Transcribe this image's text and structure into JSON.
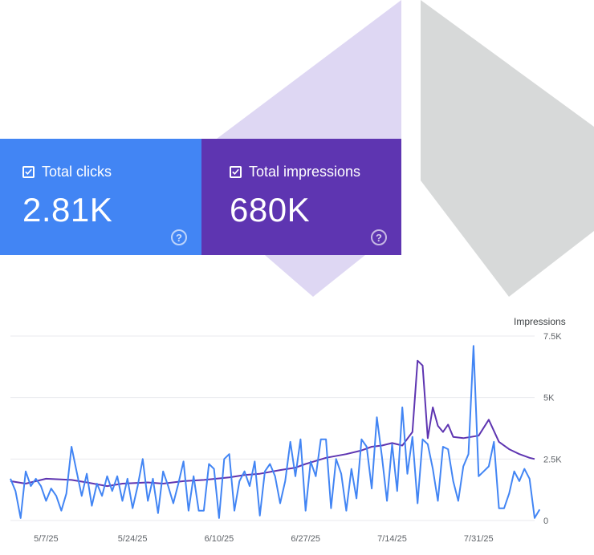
{
  "cards": {
    "clicks": {
      "label": "Total clicks",
      "value": "2.81K",
      "color": "#4285f4",
      "checked": true,
      "help_icon": "help-circle-icon"
    },
    "impressions": {
      "label": "Total impressions",
      "value": "680K",
      "color": "#5e35b1",
      "checked": true,
      "help_icon": "help-circle-icon"
    }
  },
  "chart_data": {
    "type": "line",
    "x_axis_type": "date",
    "x_range": [
      "2025-04-30",
      "2025-08-11"
    ],
    "xticks": [
      {
        "date": "2025-05-07",
        "label": "5/7/25"
      },
      {
        "date": "2025-05-24",
        "label": "5/24/25"
      },
      {
        "date": "2025-06-10",
        "label": "6/10/25"
      },
      {
        "date": "2025-06-27",
        "label": "6/27/25"
      },
      {
        "date": "2025-07-14",
        "label": "7/14/25"
      },
      {
        "date": "2025-07-31",
        "label": "7/31/25"
      }
    ],
    "right_axis": {
      "title": "Impressions",
      "ticks": [
        "7.5K",
        "5K",
        "2.5K",
        "0"
      ],
      "range": [
        0,
        7500
      ],
      "tick_values": [
        0,
        2500,
        5000,
        7500
      ]
    },
    "grid": true,
    "series": [
      {
        "color": "#5e35b1",
        "axis": "right",
        "points": [
          [
            "2025-04-30",
            1600
          ],
          [
            "2025-05-03",
            1500
          ],
          [
            "2025-05-07",
            1700
          ],
          [
            "2025-05-12",
            1650
          ],
          [
            "2025-05-15",
            1550
          ],
          [
            "2025-05-19",
            1400
          ],
          [
            "2025-05-22",
            1500
          ],
          [
            "2025-05-27",
            1550
          ],
          [
            "2025-05-30",
            1500
          ],
          [
            "2025-06-03",
            1600
          ],
          [
            "2025-06-07",
            1650
          ],
          [
            "2025-06-12",
            1750
          ],
          [
            "2025-06-15",
            1850
          ],
          [
            "2025-06-18",
            1900
          ],
          [
            "2025-06-22",
            2050
          ],
          [
            "2025-06-25",
            2150
          ],
          [
            "2025-06-27",
            2300
          ],
          [
            "2025-07-01",
            2550
          ],
          [
            "2025-07-05",
            2700
          ],
          [
            "2025-07-08",
            2850
          ],
          [
            "2025-07-10",
            3000
          ],
          [
            "2025-07-12",
            3050
          ],
          [
            "2025-07-14",
            3150
          ],
          [
            "2025-07-16",
            3050
          ],
          [
            "2025-07-18",
            3600
          ],
          [
            "2025-07-19",
            6500
          ],
          [
            "2025-07-20",
            6300
          ],
          [
            "2025-07-21",
            3350
          ],
          [
            "2025-07-22",
            4600
          ],
          [
            "2025-07-23",
            3850
          ],
          [
            "2025-07-24",
            3600
          ],
          [
            "2025-07-25",
            3900
          ],
          [
            "2025-07-26",
            3400
          ],
          [
            "2025-07-28",
            3350
          ],
          [
            "2025-07-31",
            3450
          ],
          [
            "2025-08-02",
            4100
          ],
          [
            "2025-08-04",
            3200
          ],
          [
            "2025-08-06",
            2900
          ],
          [
            "2025-08-08",
            2700
          ],
          [
            "2025-08-10",
            2550
          ],
          [
            "2025-08-11",
            2500
          ]
        ]
      },
      {
        "color": "#4285f4",
        "axis": "left",
        "points": [
          [
            "2025-04-30",
            1700
          ],
          [
            "2025-05-01",
            1200
          ],
          [
            "2025-05-02",
            100
          ],
          [
            "2025-05-03",
            2000
          ],
          [
            "2025-05-04",
            1400
          ],
          [
            "2025-05-05",
            1700
          ],
          [
            "2025-05-06",
            1400
          ],
          [
            "2025-05-07",
            800
          ],
          [
            "2025-05-08",
            1300
          ],
          [
            "2025-05-09",
            1000
          ],
          [
            "2025-05-10",
            400
          ],
          [
            "2025-05-11",
            1100
          ],
          [
            "2025-05-12",
            3000
          ],
          [
            "2025-05-13",
            2000
          ],
          [
            "2025-05-14",
            1000
          ],
          [
            "2025-05-15",
            1900
          ],
          [
            "2025-05-16",
            600
          ],
          [
            "2025-05-17",
            1500
          ],
          [
            "2025-05-18",
            1000
          ],
          [
            "2025-05-19",
            1800
          ],
          [
            "2025-05-20",
            1200
          ],
          [
            "2025-05-21",
            1800
          ],
          [
            "2025-05-22",
            800
          ],
          [
            "2025-05-23",
            1700
          ],
          [
            "2025-05-24",
            500
          ],
          [
            "2025-05-25",
            1400
          ],
          [
            "2025-05-26",
            2500
          ],
          [
            "2025-05-27",
            800
          ],
          [
            "2025-05-28",
            1700
          ],
          [
            "2025-05-29",
            300
          ],
          [
            "2025-05-30",
            2000
          ],
          [
            "2025-05-31",
            1400
          ],
          [
            "2025-06-01",
            700
          ],
          [
            "2025-06-02",
            1500
          ],
          [
            "2025-06-03",
            2400
          ],
          [
            "2025-06-04",
            400
          ],
          [
            "2025-06-05",
            1800
          ],
          [
            "2025-06-06",
            400
          ],
          [
            "2025-06-07",
            400
          ],
          [
            "2025-06-08",
            2300
          ],
          [
            "2025-06-09",
            2100
          ],
          [
            "2025-06-10",
            100
          ],
          [
            "2025-06-11",
            2500
          ],
          [
            "2025-06-12",
            2700
          ],
          [
            "2025-06-13",
            400
          ],
          [
            "2025-06-14",
            1600
          ],
          [
            "2025-06-15",
            2000
          ],
          [
            "2025-06-16",
            1400
          ],
          [
            "2025-06-17",
            2400
          ],
          [
            "2025-06-18",
            200
          ],
          [
            "2025-06-19",
            2000
          ],
          [
            "2025-06-20",
            2300
          ],
          [
            "2025-06-21",
            1800
          ],
          [
            "2025-06-22",
            700
          ],
          [
            "2025-06-23",
            1600
          ],
          [
            "2025-06-24",
            3200
          ],
          [
            "2025-06-25",
            1800
          ],
          [
            "2025-06-26",
            3300
          ],
          [
            "2025-06-27",
            400
          ],
          [
            "2025-06-28",
            2400
          ],
          [
            "2025-06-29",
            1800
          ],
          [
            "2025-06-30",
            3300
          ],
          [
            "2025-07-01",
            3300
          ],
          [
            "2025-07-02",
            500
          ],
          [
            "2025-07-03",
            2500
          ],
          [
            "2025-07-04",
            1900
          ],
          [
            "2025-07-05",
            400
          ],
          [
            "2025-07-06",
            2100
          ],
          [
            "2025-07-07",
            900
          ],
          [
            "2025-07-08",
            3300
          ],
          [
            "2025-07-09",
            3000
          ],
          [
            "2025-07-10",
            1300
          ],
          [
            "2025-07-11",
            4200
          ],
          [
            "2025-07-12",
            2600
          ],
          [
            "2025-07-13",
            800
          ],
          [
            "2025-07-14",
            3100
          ],
          [
            "2025-07-15",
            1200
          ],
          [
            "2025-07-16",
            4600
          ],
          [
            "2025-07-17",
            1900
          ],
          [
            "2025-07-18",
            3400
          ],
          [
            "2025-07-19",
            700
          ],
          [
            "2025-07-20",
            3300
          ],
          [
            "2025-07-21",
            3100
          ],
          [
            "2025-07-22",
            2100
          ],
          [
            "2025-07-23",
            800
          ],
          [
            "2025-07-24",
            3000
          ],
          [
            "2025-07-25",
            2900
          ],
          [
            "2025-07-26",
            1600
          ],
          [
            "2025-07-27",
            800
          ],
          [
            "2025-07-28",
            2200
          ],
          [
            "2025-07-29",
            2700
          ],
          [
            "2025-07-30",
            7100
          ],
          [
            "2025-07-31",
            1800
          ],
          [
            "2025-08-01",
            2000
          ],
          [
            "2025-08-02",
            2200
          ],
          [
            "2025-08-03",
            3200
          ],
          [
            "2025-08-04",
            500
          ],
          [
            "2025-08-05",
            500
          ],
          [
            "2025-08-06",
            1100
          ],
          [
            "2025-08-07",
            2000
          ],
          [
            "2025-08-08",
            1600
          ],
          [
            "2025-08-09",
            2100
          ],
          [
            "2025-08-10",
            1700
          ],
          [
            "2025-08-11",
            100
          ],
          [
            "2025-08-12",
            450
          ]
        ]
      }
    ]
  }
}
